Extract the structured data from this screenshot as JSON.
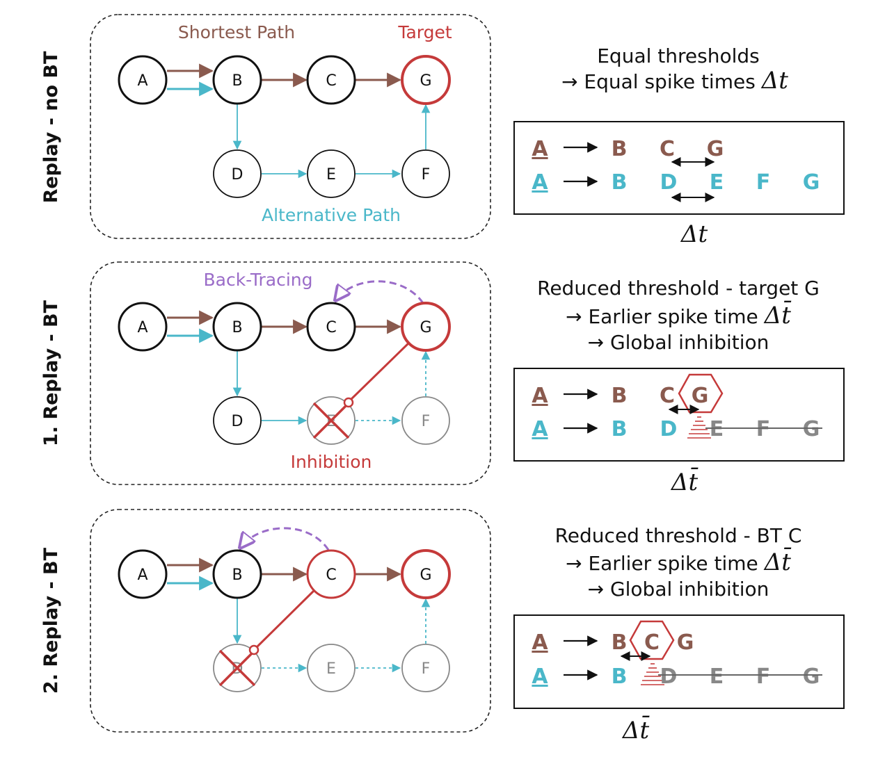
{
  "colors": {
    "brown": "#8a5a4e",
    "blue": "#4ab7c9",
    "red": "#c53a3a",
    "purple": "#9a6cc8",
    "gray": "#888888",
    "black": "#111111"
  },
  "panel1": {
    "side_label": "Replay - no BT",
    "shortest_path_label": "Shortest Path",
    "target_label": "Target",
    "alternative_path_label": "Alternative Path",
    "nodes": {
      "A": "A",
      "B": "B",
      "C": "C",
      "G": "G",
      "D": "D",
      "E": "E",
      "F": "F"
    },
    "desc_line1": "Equal thresholds",
    "desc_line2": "→ Equal spike times",
    "desc_symbol": "Δt",
    "seq_top": [
      "A",
      "B",
      "C",
      "G"
    ],
    "seq_bottom": [
      "A",
      "B",
      "D",
      "E",
      "F",
      "G"
    ],
    "caption": "Δt"
  },
  "panel2": {
    "side_label": "1. Replay - BT",
    "backtracing_label": "Back-Tracing",
    "inhibition_label": "Inhibition",
    "nodes": {
      "A": "A",
      "B": "B",
      "C": "C",
      "G": "G",
      "D": "D",
      "E": "E",
      "F": "F"
    },
    "desc_line1": "Reduced threshold - target G",
    "desc_line2": "→ Earlier spike time",
    "desc_symbol": "Δt̄",
    "desc_line3": "→ Global inhibition",
    "seq_top": [
      "A",
      "B",
      "C",
      "G"
    ],
    "seq_bottom": [
      "A",
      "B",
      "D",
      "E",
      "F",
      "G"
    ],
    "caption": "Δt̄"
  },
  "panel3": {
    "side_label": "2. Replay - BT",
    "nodes": {
      "A": "A",
      "B": "B",
      "C": "C",
      "G": "G",
      "D": "D",
      "E": "E",
      "F": "F"
    },
    "desc_line1": "Reduced threshold - BT C",
    "desc_line2": "→ Earlier spike time",
    "desc_symbol": "Δt̄",
    "desc_line3": "→ Global inhibition",
    "seq_top": [
      "A",
      "B",
      "C",
      "G"
    ],
    "seq_bottom": [
      "A",
      "B",
      "D",
      "E",
      "F",
      "G"
    ],
    "caption": "Δt̄"
  }
}
